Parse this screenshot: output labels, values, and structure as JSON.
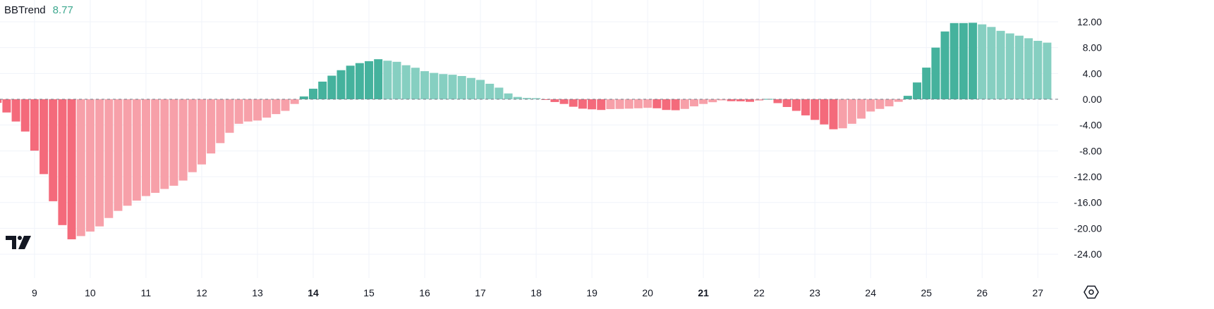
{
  "legend": {
    "name": "BBTrend",
    "value": "8.77"
  },
  "colors": {
    "up_strong": "#45b29d",
    "up_weak": "#86cfc1",
    "down_strong": "#f46a7b",
    "down_weak": "#f7a0a9",
    "grid": "#f0f3fa",
    "zero": "#787b86"
  },
  "icons": {
    "logo": "tradingview-logo",
    "settings": "settings-icon"
  },
  "chart_data": {
    "type": "bar",
    "title": "BBTrend",
    "xlabel": "",
    "ylabel": "",
    "ylim": [
      -24,
      12
    ],
    "yticks": [
      "12.00",
      "8.00",
      "4.00",
      "0.00",
      "-4.00",
      "-8.00",
      "-12.00",
      "-16.00",
      "-20.00",
      "-24.00"
    ],
    "ytick_values": [
      12,
      8,
      4,
      0,
      -4,
      -8,
      -12,
      -16,
      -20,
      -24
    ],
    "bars_per_day": 6,
    "xticks": [
      {
        "label": "9",
        "bar": 4,
        "bold": false
      },
      {
        "label": "10",
        "bar": 10,
        "bold": false
      },
      {
        "label": "11",
        "bar": 16,
        "bold": false
      },
      {
        "label": "12",
        "bar": 22,
        "bold": false
      },
      {
        "label": "13",
        "bar": 28,
        "bold": false
      },
      {
        "label": "14",
        "bar": 34,
        "bold": true
      },
      {
        "label": "15",
        "bar": 40,
        "bold": false
      },
      {
        "label": "16",
        "bar": 46,
        "bold": false
      },
      {
        "label": "17",
        "bar": 52,
        "bold": false
      },
      {
        "label": "18",
        "bar": 58,
        "bold": false
      },
      {
        "label": "19",
        "bar": 64,
        "bold": false
      },
      {
        "label": "20",
        "bar": 70,
        "bold": false
      },
      {
        "label": "21",
        "bar": 76,
        "bold": true
      },
      {
        "label": "22",
        "bar": 82,
        "bold": false
      },
      {
        "label": "23",
        "bar": 88,
        "bold": false
      },
      {
        "label": "24",
        "bar": 94,
        "bold": false
      },
      {
        "label": "25",
        "bar": 100,
        "bold": false
      },
      {
        "label": "26",
        "bar": 106,
        "bold": false
      },
      {
        "label": "27",
        "bar": 112,
        "bold": false
      }
    ],
    "grid": true,
    "values": [
      -0.56,
      -2.05,
      -3.45,
      -5.0,
      -7.96,
      -11.6,
      -15.8,
      -19.5,
      -21.7,
      -21.2,
      -20.5,
      -19.7,
      -18.4,
      -17.3,
      -16.5,
      -15.7,
      -15.0,
      -14.5,
      -13.9,
      -13.4,
      -12.6,
      -11.3,
      -10.1,
      -8.4,
      -6.8,
      -5.2,
      -3.8,
      -3.45,
      -3.3,
      -2.85,
      -2.3,
      -1.8,
      -0.73,
      0.43,
      1.63,
      2.73,
      3.65,
      4.5,
      5.2,
      5.6,
      5.9,
      6.2,
      5.97,
      5.8,
      5.27,
      4.88,
      4.35,
      4.08,
      3.9,
      3.8,
      3.6,
      3.3,
      3.0,
      2.4,
      1.8,
      0.9,
      0.36,
      0.2,
      0.17,
      -0.1,
      -0.43,
      -0.73,
      -1.16,
      -1.46,
      -1.56,
      -1.66,
      -1.53,
      -1.5,
      -1.46,
      -1.4,
      -1.33,
      -1.4,
      -1.66,
      -1.7,
      -1.5,
      -1.1,
      -0.73,
      -0.46,
      -0.17,
      -0.3,
      -0.32,
      -0.4,
      -0.2,
      0.05,
      -0.6,
      -1.2,
      -1.8,
      -2.5,
      -3.2,
      -3.9,
      -4.65,
      -4.5,
      -3.8,
      -3.0,
      -1.9,
      -1.5,
      -1.1,
      -0.4,
      0.53,
      2.6,
      4.9,
      8.0,
      10.5,
      11.8,
      11.8,
      11.85,
      11.6,
      11.2,
      10.6,
      10.2,
      9.85,
      9.45,
      9.05,
      8.77
    ]
  }
}
